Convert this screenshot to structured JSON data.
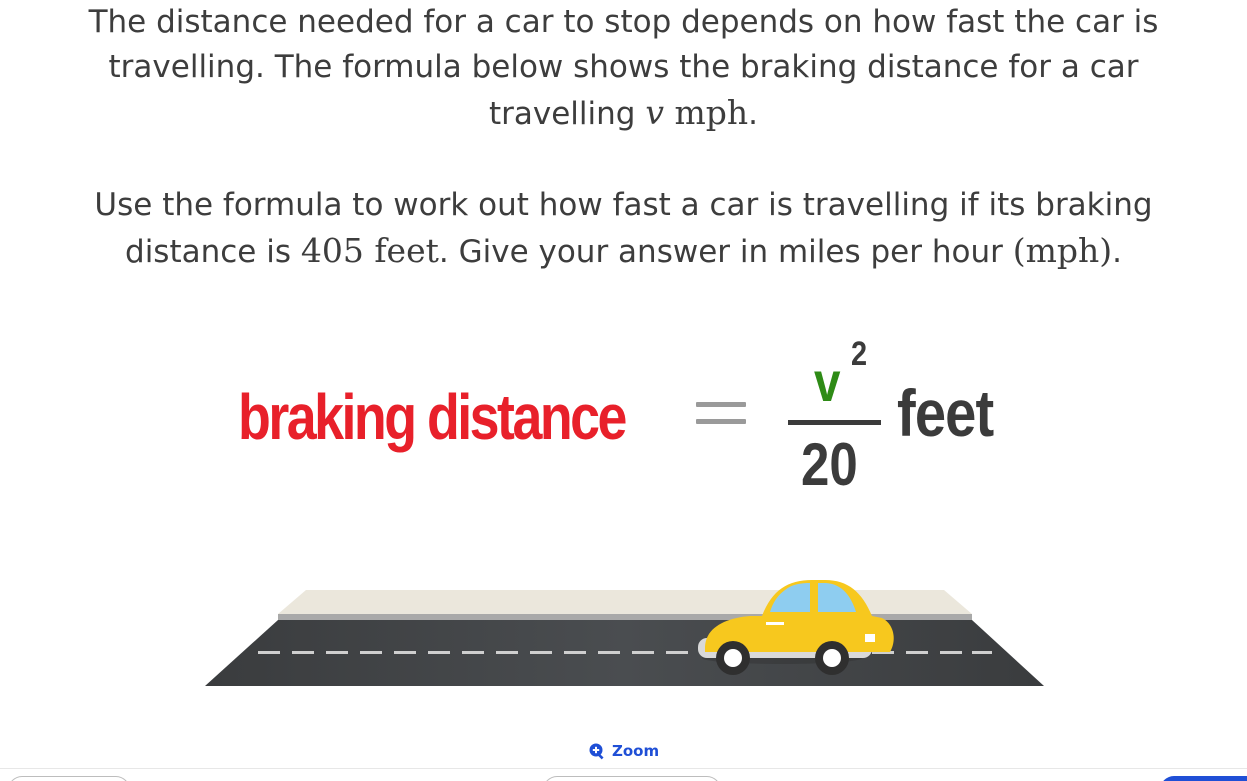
{
  "question": {
    "line1": "The distance needed for a car to stop depends on how fast the car is",
    "line2": "travelling. The formula below shows the braking distance for a car",
    "line3_pre": "travelling ",
    "line3_var": "v",
    "line3_unit": " mph",
    "line3_post": ".",
    "line4": "Use the formula to work out how fast a car is travelling if its braking",
    "line5_pre": "distance is ",
    "line5_value": "405",
    "line5_unit": " feet",
    "line5_mid": ". Give your answer in miles per hour ",
    "line5_paren": "(mph)",
    "line5_post": "."
  },
  "formula": {
    "term": "braking distance",
    "numerator": "v",
    "exponent": "2",
    "denominator": "20",
    "unit": "feet"
  },
  "zoom": {
    "label": "Zoom",
    "icon": "zoom-in-icon"
  },
  "colors": {
    "term": "#e8202a",
    "numerator": "#2e8b16",
    "text": "#3b3b3b",
    "accent": "#1f4fd6",
    "car": "#f7c81e"
  }
}
